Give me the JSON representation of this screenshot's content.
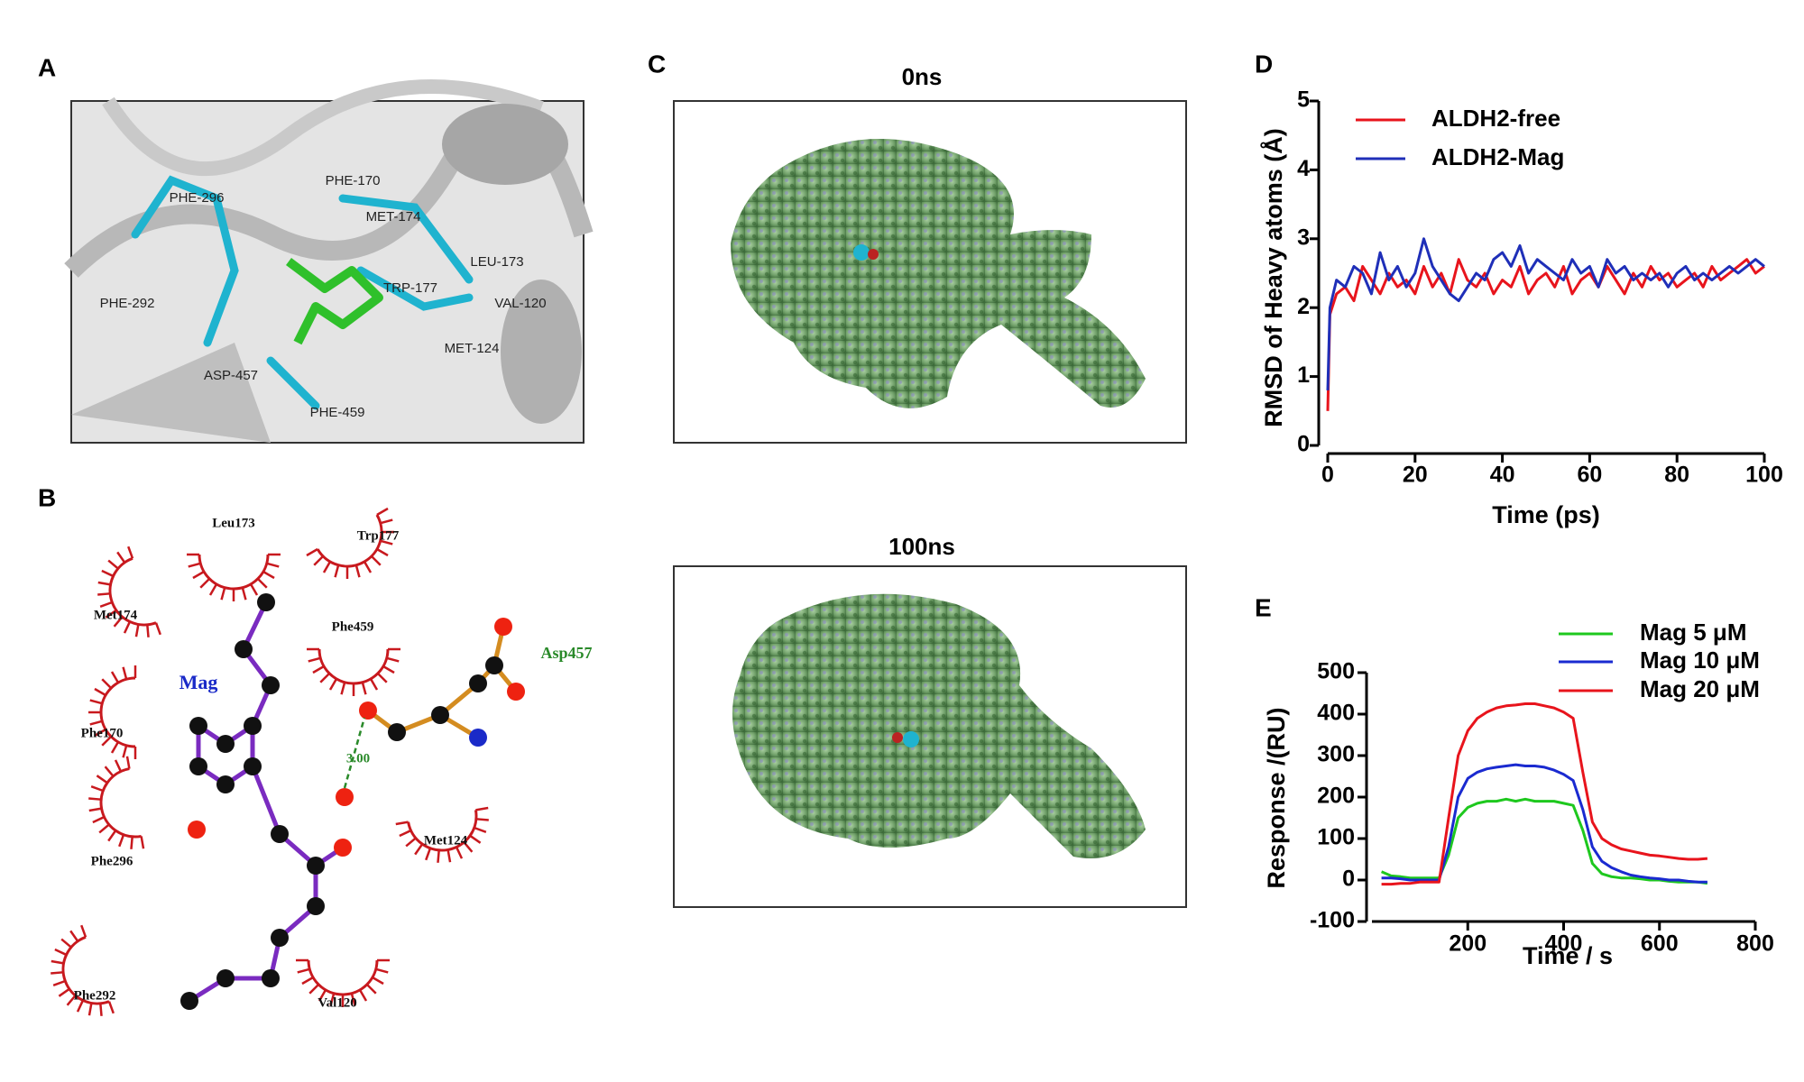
{
  "panel_labels": [
    "A",
    "B",
    "C",
    "D",
    "E"
  ],
  "panel_a": {
    "labels": [
      "PHE-296",
      "PHE-170",
      "MET-174",
      "LEU-173",
      "TRP-177",
      "VAL-120",
      "PHE-292",
      "MET-124",
      "ASP-457",
      "PHE-459"
    ]
  },
  "panel_b": {
    "ligand": "Mag",
    "residue": "Asp457",
    "hbond": "3.00",
    "contacts": [
      "Leu173",
      "Trp177",
      "Met174",
      "Phe459",
      "Phe170",
      "Met124",
      "Phe296",
      "Phe292",
      "Val120"
    ]
  },
  "panel_c": {
    "titles": [
      "0ns",
      "100ns"
    ]
  },
  "chart_data": [
    {
      "type": "line",
      "xlabel": "Time (ps)",
      "ylabel": "RMSD of Heavy atoms  (Å)",
      "x": [
        0,
        0.5,
        2,
        4,
        6,
        8,
        10,
        12,
        14,
        16,
        18,
        20,
        22,
        24,
        26,
        28,
        30,
        32,
        34,
        36,
        38,
        40,
        42,
        44,
        46,
        48,
        50,
        52,
        54,
        56,
        58,
        60,
        62,
        64,
        66,
        68,
        70,
        72,
        74,
        76,
        78,
        80,
        82,
        84,
        86,
        88,
        90,
        92,
        94,
        96,
        98,
        100
      ],
      "series": [
        {
          "name": "ALDH2-free",
          "color": "#e8141c",
          "values": [
            0.5,
            1.9,
            2.2,
            2.3,
            2.1,
            2.6,
            2.4,
            2.2,
            2.5,
            2.3,
            2.4,
            2.2,
            2.6,
            2.3,
            2.5,
            2.2,
            2.7,
            2.4,
            2.3,
            2.5,
            2.2,
            2.4,
            2.3,
            2.6,
            2.2,
            2.4,
            2.5,
            2.3,
            2.6,
            2.2,
            2.4,
            2.5,
            2.3,
            2.6,
            2.4,
            2.2,
            2.5,
            2.3,
            2.6,
            2.4,
            2.5,
            2.3,
            2.4,
            2.5,
            2.3,
            2.6,
            2.4,
            2.5,
            2.6,
            2.7,
            2.5,
            2.6
          ]
        },
        {
          "name": "ALDH2-Mag",
          "color": "#1f2fb8",
          "values": [
            0.8,
            2.0,
            2.4,
            2.3,
            2.6,
            2.5,
            2.2,
            2.8,
            2.4,
            2.6,
            2.3,
            2.5,
            3.0,
            2.6,
            2.4,
            2.2,
            2.1,
            2.3,
            2.5,
            2.4,
            2.7,
            2.8,
            2.6,
            2.9,
            2.5,
            2.7,
            2.6,
            2.5,
            2.4,
            2.7,
            2.5,
            2.6,
            2.3,
            2.7,
            2.5,
            2.6,
            2.4,
            2.5,
            2.4,
            2.5,
            2.3,
            2.5,
            2.6,
            2.4,
            2.5,
            2.4,
            2.5,
            2.6,
            2.5,
            2.6,
            2.7,
            2.6
          ]
        }
      ],
      "xlim": [
        0,
        100
      ],
      "xticks": [
        0,
        20,
        40,
        60,
        80,
        100
      ],
      "ylim": [
        0,
        5
      ],
      "yticks": [
        0,
        1,
        2,
        3,
        4,
        5
      ],
      "legend": "upper left"
    },
    {
      "type": "line",
      "xlabel": "Time / s",
      "ylabel": "Response /(RU)",
      "x": [
        20,
        40,
        60,
        80,
        100,
        120,
        140,
        160,
        180,
        200,
        220,
        240,
        260,
        280,
        300,
        320,
        340,
        360,
        380,
        400,
        420,
        440,
        460,
        480,
        500,
        520,
        540,
        560,
        580,
        600,
        620,
        640,
        660,
        680,
        700
      ],
      "series": [
        {
          "name": "Mag 5 μM",
          "color": "#1ec81e",
          "values": [
            20,
            10,
            8,
            5,
            5,
            5,
            5,
            60,
            150,
            175,
            185,
            190,
            190,
            195,
            190,
            195,
            190,
            190,
            190,
            185,
            180,
            120,
            40,
            15,
            8,
            5,
            5,
            3,
            0,
            0,
            -3,
            -5,
            -5,
            -5,
            -8
          ]
        },
        {
          "name": "Mag 10 μM",
          "color": "#1a2ad0",
          "values": [
            5,
            5,
            3,
            0,
            0,
            0,
            0,
            80,
            200,
            245,
            260,
            268,
            272,
            275,
            278,
            275,
            275,
            272,
            265,
            255,
            240,
            170,
            80,
            45,
            30,
            20,
            12,
            8,
            5,
            3,
            0,
            0,
            -3,
            -5,
            -5
          ]
        },
        {
          "name": "Mag 20 μM",
          "color": "#e8141c",
          "values": [
            -10,
            -10,
            -8,
            -8,
            -5,
            -5,
            -5,
            150,
            300,
            360,
            390,
            405,
            415,
            420,
            422,
            425,
            425,
            420,
            415,
            405,
            390,
            260,
            140,
            100,
            85,
            75,
            70,
            65,
            60,
            58,
            55,
            52,
            50,
            50,
            52
          ]
        }
      ],
      "xlim": [
        0,
        800
      ],
      "xticks": [
        200,
        400,
        600,
        800
      ],
      "ylim": [
        -100,
        500
      ],
      "yticks": [
        -100,
        0,
        100,
        200,
        300,
        400,
        500
      ],
      "legend": "upper right"
    }
  ]
}
